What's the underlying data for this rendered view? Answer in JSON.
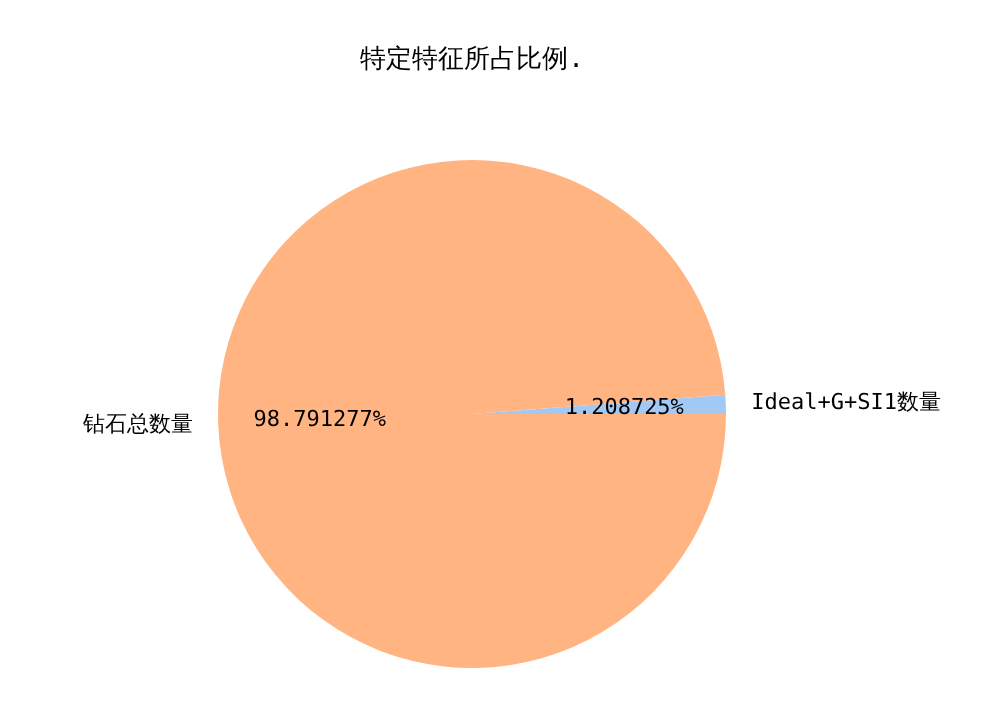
{
  "chart_data": {
    "type": "pie",
    "title": "特定特征所占比例.",
    "categories": [
      "Ideal+G+SI1数量",
      "钻石总数量"
    ],
    "values": [
      1.208725,
      98.791277
    ],
    "value_labels": [
      "1.208725%",
      "98.791277%"
    ],
    "colors": [
      "#a1c9f4",
      "#ffb482"
    ]
  }
}
